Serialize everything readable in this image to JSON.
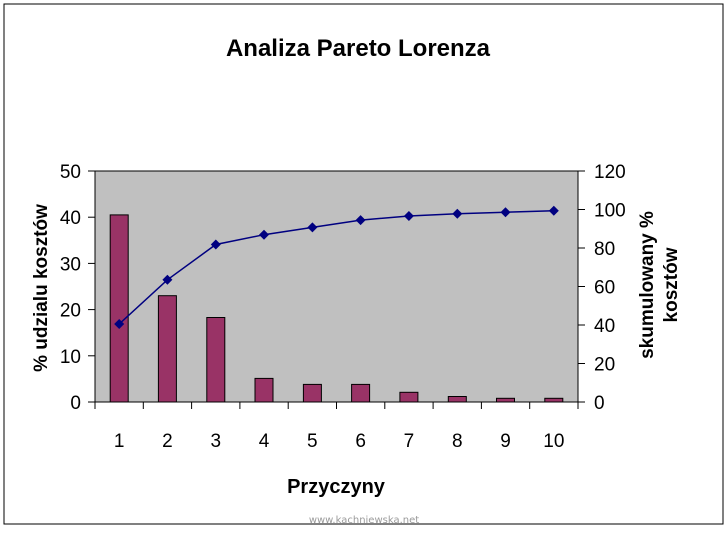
{
  "chart_data": {
    "type": "bar",
    "title": "Analiza Pareto Lorenza",
    "xlabel": "Przyczyny",
    "ylabel": "% udzialu kosztów",
    "y2label_line1": "skumulowany %",
    "y2label_line2": "kosztów",
    "categories": [
      "1",
      "2",
      "3",
      "4",
      "5",
      "6",
      "7",
      "8",
      "9",
      "10"
    ],
    "ylim": [
      0,
      50
    ],
    "yticks": [
      "0",
      "10",
      "20",
      "30",
      "40",
      "50"
    ],
    "y2lim": [
      0,
      120
    ],
    "y2ticks": [
      "0",
      "20",
      "40",
      "60",
      "80",
      "100",
      "120"
    ],
    "grid": false,
    "series": [
      {
        "name": "",
        "type": "bar",
        "axis": "left",
        "color": "#993366",
        "values": [
          40.5,
          23,
          18.3,
          5.1,
          3.8,
          3.8,
          2.1,
          1.2,
          0.8,
          0.8
        ]
      },
      {
        "name": "",
        "type": "line",
        "axis": "right",
        "color": "#000080",
        "values": [
          40.5,
          63.5,
          81.8,
          86.9,
          90.7,
          94.5,
          96.6,
          97.8,
          98.6,
          99.4
        ]
      }
    ]
  },
  "watermark": "www.kachniewska.net",
  "colors": {
    "plot_background": "#c0c0c0",
    "bar_fill": "#993366",
    "line": "#000080"
  }
}
